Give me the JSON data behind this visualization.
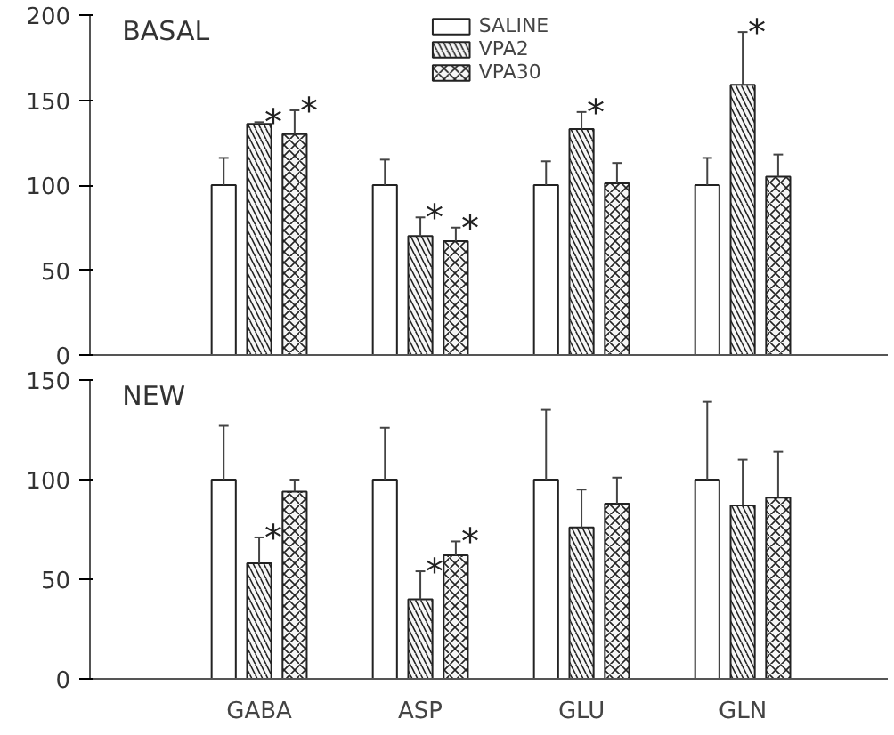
{
  "chart_data": [
    {
      "type": "bar",
      "title": "BASAL",
      "categories": [
        null,
        null,
        null,
        null
      ],
      "ylim": [
        0,
        200
      ],
      "yticks": [
        0,
        50,
        100,
        150,
        200
      ],
      "tick_labels": "y",
      "legend": "top",
      "grid": false,
      "series": [
        {
          "name": "SALINE",
          "color": "#ffffff",
          "values": [
            100,
            100,
            100,
            100
          ],
          "errors": [
            [
              100,
              116
            ],
            [
              100,
              115
            ],
            [
              100,
              114
            ],
            [
              100,
              116
            ]
          ]
        },
        {
          "name": "VPA2",
          "color": "#222222",
          "values": [
            136,
            70,
            133,
            159
          ],
          "errors": [
            [
              136,
              137
            ],
            [
              70,
              81
            ],
            [
              133,
              143
            ],
            [
              159,
              190
            ]
          ],
          "value_labels": [
            "*",
            "*",
            "*",
            "*"
          ]
        },
        {
          "name": "VPA30",
          "color": "#222222",
          "values": [
            130,
            67,
            101,
            105
          ],
          "errors": [
            [
              130,
              144
            ],
            [
              67,
              75
            ],
            [
              101,
              113
            ],
            [
              105,
              118
            ]
          ],
          "value_labels": [
            "*",
            "*",
            null,
            null
          ]
        }
      ]
    },
    {
      "type": "bar",
      "title": "NEW",
      "categories": [
        "GABA",
        "ASP",
        "GLU",
        "GLN"
      ],
      "ylim": [
        0,
        150
      ],
      "yticks": [
        0,
        50,
        100,
        150
      ],
      "grid": false,
      "series": [
        {
          "color": "#ffffff",
          "values": [
            100,
            100,
            100,
            100
          ],
          "errors": [
            [
              100,
              127
            ],
            [
              100,
              126
            ],
            [
              100,
              135
            ],
            [
              100,
              139
            ]
          ]
        },
        {
          "color": "#222222",
          "values": [
            58,
            40,
            76,
            87
          ],
          "errors": [
            [
              58,
              71
            ],
            [
              40,
              54
            ],
            [
              76,
              95
            ],
            [
              87,
              110
            ]
          ],
          "value_labels": [
            "*",
            "*",
            null,
            null
          ]
        },
        {
          "color": "#222222",
          "values": [
            94,
            62,
            88,
            91
          ],
          "errors": [
            [
              94,
              100
            ],
            [
              62,
              69
            ],
            [
              88,
              101
            ],
            [
              91,
              114
            ]
          ],
          "value_labels": [
            null,
            "*",
            null,
            null
          ]
        }
      ]
    }
  ]
}
